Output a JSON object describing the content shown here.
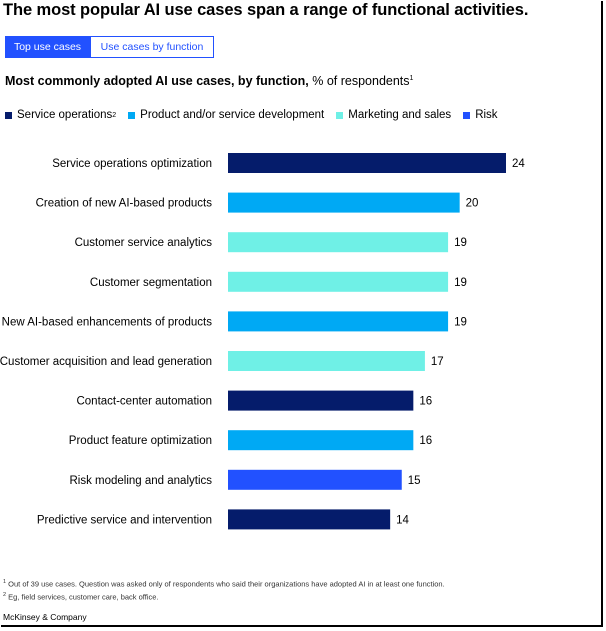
{
  "headline": "The most popular AI use cases span a range of functional activities.",
  "tabs": [
    {
      "label": "Top use cases",
      "active": true
    },
    {
      "label": "Use cases by function",
      "active": false
    }
  ],
  "subtitle": {
    "bold": "Most commonly adopted AI use cases, by function,",
    "rest": " % of respondents",
    "footnote_mark": "1"
  },
  "legend": [
    {
      "label": "Service operations",
      "sup": "2",
      "color": "#051c6b"
    },
    {
      "label": "Product and/or service development",
      "sup": "",
      "color": "#00a9f4"
    },
    {
      "label": "Marketing and sales",
      "sup": "",
      "color": "#6ff0e6"
    },
    {
      "label": "Risk",
      "sup": "",
      "color": "#2251ff"
    }
  ],
  "chart_data": {
    "type": "bar",
    "orientation": "horizontal",
    "categories": [
      "Service operations optimization",
      "Creation of new AI-based products",
      "Customer service analytics",
      "Customer segmentation",
      "New AI-based enhancements of products",
      "Customer acquisition and lead generation",
      "Contact-center automation",
      "Product feature optimization",
      "Risk modeling and analytics",
      "Predictive service and intervention"
    ],
    "values": [
      24,
      20,
      19,
      19,
      19,
      17,
      16,
      16,
      15,
      14
    ],
    "function": [
      "Service operations",
      "Product and/or service development",
      "Marketing and sales",
      "Marketing and sales",
      "Product and/or service development",
      "Marketing and sales",
      "Service operations",
      "Product and/or service development",
      "Risk",
      "Service operations"
    ],
    "colors": [
      "#051c6b",
      "#00a9f4",
      "#6ff0e6",
      "#6ff0e6",
      "#00a9f4",
      "#6ff0e6",
      "#051c6b",
      "#00a9f4",
      "#2251ff",
      "#051c6b"
    ],
    "xlim": [
      0,
      24
    ],
    "grid": false,
    "legend_position": "top"
  },
  "footnotes": [
    {
      "mark": "1",
      "text": "Out of 39 use cases. Question was asked only of respondents who said their organizations have adopted AI in at least one function."
    },
    {
      "mark": "2",
      "text": "Eg, field services, customer care, back office."
    }
  ],
  "source": "McKinsey & Company"
}
